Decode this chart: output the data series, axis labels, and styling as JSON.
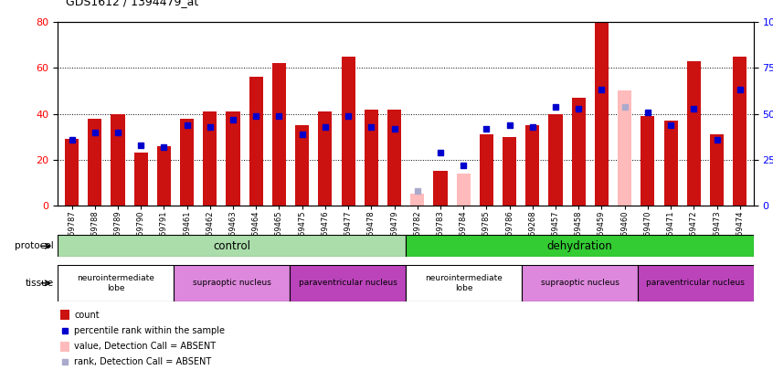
{
  "title": "GDS1612 / 1394479_at",
  "samples": [
    "GSM69787",
    "GSM69788",
    "GSM69789",
    "GSM69790",
    "GSM69791",
    "GSM69461",
    "GSM69462",
    "GSM69463",
    "GSM69464",
    "GSM69465",
    "GSM69475",
    "GSM69476",
    "GSM69477",
    "GSM69478",
    "GSM69479",
    "GSM69782",
    "GSM69783",
    "GSM69784",
    "GSM69785",
    "GSM69786",
    "GSM69268",
    "GSM69457",
    "GSM69458",
    "GSM69459",
    "GSM69460",
    "GSM69470",
    "GSM69471",
    "GSM69472",
    "GSM69473",
    "GSM69474"
  ],
  "count_values": [
    29,
    38,
    40,
    23,
    26,
    38,
    41,
    41,
    56,
    62,
    35,
    41,
    65,
    42,
    42,
    5,
    15,
    14,
    31,
    30,
    35,
    40,
    47,
    80,
    50,
    39,
    37,
    63,
    31,
    65
  ],
  "rank_values": [
    36,
    40,
    40,
    33,
    32,
    44,
    43,
    47,
    49,
    49,
    39,
    43,
    49,
    43,
    42,
    8,
    29,
    22,
    42,
    44,
    43,
    54,
    53,
    63,
    54,
    51,
    44,
    53,
    36,
    63
  ],
  "absent_mask": [
    false,
    false,
    false,
    false,
    false,
    false,
    false,
    false,
    false,
    false,
    false,
    false,
    false,
    false,
    false,
    true,
    false,
    true,
    false,
    false,
    false,
    false,
    false,
    false,
    true,
    false,
    false,
    false,
    false,
    false
  ],
  "absent_rank_mask": [
    false,
    false,
    false,
    false,
    false,
    false,
    false,
    false,
    false,
    false,
    false,
    false,
    false,
    false,
    false,
    true,
    false,
    false,
    false,
    false,
    false,
    false,
    false,
    false,
    true,
    false,
    false,
    false,
    false,
    false
  ],
  "protocol_groups": [
    {
      "label": "control",
      "start": 0,
      "end": 15,
      "color": "#aaddaa"
    },
    {
      "label": "dehydration",
      "start": 15,
      "end": 30,
      "color": "#33cc33"
    }
  ],
  "tissue_groups": [
    {
      "label": "neurointermediate\nlobe",
      "start": 0,
      "end": 5,
      "color": "#ffffff"
    },
    {
      "label": "supraoptic nucleus",
      "start": 5,
      "end": 10,
      "color": "#cc77cc"
    },
    {
      "label": "paraventricular nucleus",
      "start": 10,
      "end": 15,
      "color": "#aa44aa"
    },
    {
      "label": "neurointermediate\nlobe",
      "start": 15,
      "end": 20,
      "color": "#ffffff"
    },
    {
      "label": "supraoptic nucleus",
      "start": 20,
      "end": 25,
      "color": "#cc77cc"
    },
    {
      "label": "paraventricular nucleus",
      "start": 25,
      "end": 30,
      "color": "#aa44aa"
    }
  ],
  "bar_color_present": "#cc1111",
  "bar_color_absent": "#ffbbbb",
  "rank_color_present": "#0000cc",
  "rank_color_absent": "#aaaacc",
  "ylim_left": [
    0,
    80
  ],
  "ylim_right": [
    0,
    100
  ],
  "yticks_left": [
    0,
    20,
    40,
    60,
    80
  ],
  "yticks_right": [
    0,
    25,
    50,
    75,
    100
  ],
  "bg_color": "#ffffff"
}
